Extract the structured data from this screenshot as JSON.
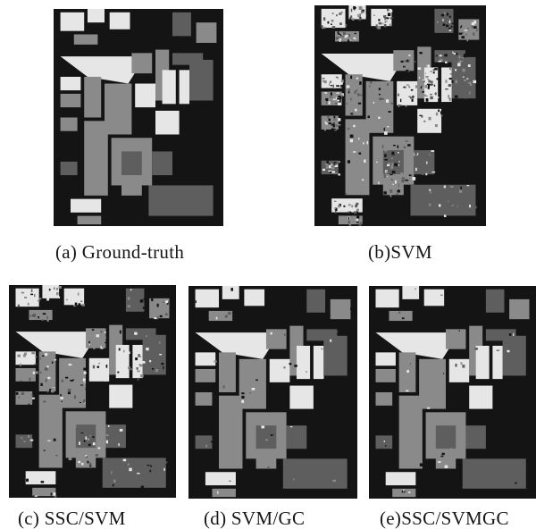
{
  "figure": {
    "panels": [
      {
        "id": "a",
        "caption": "(a) Ground-truth",
        "variant": "clean"
      },
      {
        "id": "b",
        "caption": "(b)SVM",
        "variant": "noisy"
      },
      {
        "id": "c",
        "caption": "(c) SSC/SVM",
        "variant": "medium"
      },
      {
        "id": "d",
        "caption": "(d) SVM/GC",
        "variant": "smooth"
      },
      {
        "id": "e",
        "caption": "(e)SSC/SVMGC",
        "variant": "smooth"
      }
    ]
  },
  "colors": {
    "background": "#141414",
    "light": "#e6e6e6",
    "mid": "#8a8a8a",
    "dark": "#5e5e5e"
  }
}
